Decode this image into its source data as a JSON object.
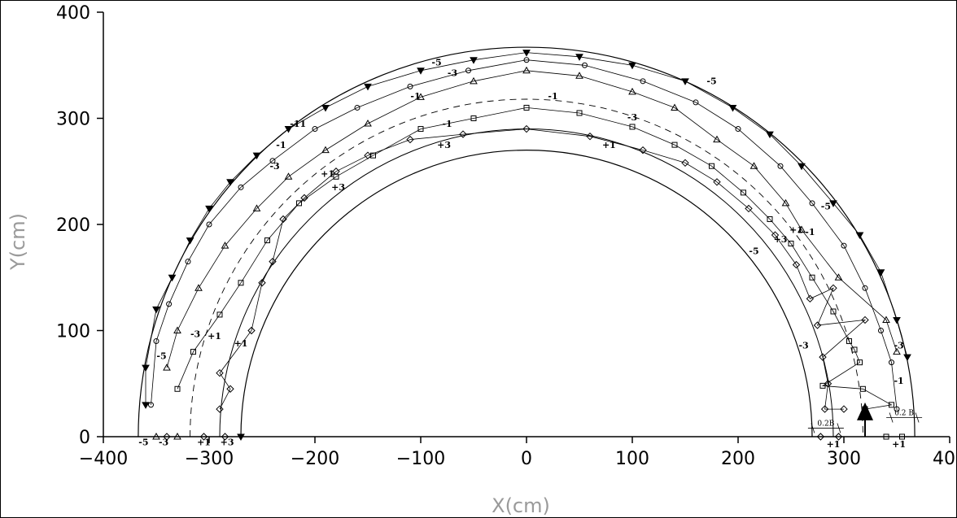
{
  "chart_data": {
    "type": "scatter",
    "title": "",
    "xlabel": "X(cm)",
    "ylabel": "Y(cm)",
    "xlim": [
      -400,
      400
    ],
    "ylim": [
      0,
      400
    ],
    "xticks": [
      -400,
      -300,
      -200,
      -100,
      0,
      100,
      200,
      300,
      400
    ],
    "yticks": [
      0,
      100,
      200,
      300,
      400
    ],
    "xtick_labels": [
      "−400",
      "−300",
      "−200",
      "−100",
      "0",
      "100",
      "200",
      "300",
      "400"
    ],
    "ytick_labels": [
      "0",
      "100",
      "200",
      "300",
      "400"
    ],
    "grid": false,
    "channel": {
      "inner_radius": 270,
      "outer_radius": 367,
      "inner_offset_radius": 290,
      "dashed_centerline_radius": 318
    },
    "arrow": {
      "x": 320,
      "y_from": 0,
      "y_to": 20
    },
    "scale_marks": [
      {
        "label": "0.2B",
        "x": 283,
        "y": 8
      },
      {
        "label": "0.2 B",
        "x": 357,
        "y": 18
      }
    ],
    "contour_labels": [
      {
        "text": "-5",
        "x": -362,
        "y": -8
      },
      {
        "text": "-3",
        "x": -343,
        "y": -8
      },
      {
        "text": "+1",
        "x": -305,
        "y": -8
      },
      {
        "text": "+3",
        "x": -283,
        "y": -8
      },
      {
        "text": "+1",
        "x": 290,
        "y": -10
      },
      {
        "text": "+1",
        "x": 352,
        "y": -10
      },
      {
        "text": "-5",
        "x": -345,
        "y": 73
      },
      {
        "text": "-3",
        "x": -313,
        "y": 94
      },
      {
        "text": "+1",
        "x": -295,
        "y": 92
      },
      {
        "text": "+1",
        "x": -270,
        "y": 85
      },
      {
        "text": "-3",
        "x": 262,
        "y": 83
      },
      {
        "text": "-3",
        "x": 352,
        "y": 83
      },
      {
        "text": "-1",
        "x": 352,
        "y": 50
      },
      {
        "text": "-5",
        "x": 215,
        "y": 172
      },
      {
        "text": "+3",
        "x": 240,
        "y": 183
      },
      {
        "text": "+1",
        "x": 255,
        "y": 192
      },
      {
        "text": "-1",
        "x": 268,
        "y": 190
      },
      {
        "text": "-5",
        "x": 283,
        "y": 214
      },
      {
        "text": "-1",
        "x": -232,
        "y": 272
      },
      {
        "text": "+1",
        "x": -188,
        "y": 245
      },
      {
        "text": "+3",
        "x": -178,
        "y": 232
      },
      {
        "text": "-11",
        "x": -216,
        "y": 292
      },
      {
        "text": "-3",
        "x": -238,
        "y": 252
      },
      {
        "text": "-1",
        "x": -105,
        "y": 318
      },
      {
        "text": "-1",
        "x": -75,
        "y": 292
      },
      {
        "text": "+3",
        "x": -78,
        "y": 272
      },
      {
        "text": "-1",
        "x": 25,
        "y": 318
      },
      {
        "text": "+1",
        "x": 78,
        "y": 272
      },
      {
        "text": "-3",
        "x": 100,
        "y": 298
      },
      {
        "text": "-5",
        "x": -85,
        "y": 350
      },
      {
        "text": "-3",
        "x": -70,
        "y": 340
      },
      {
        "text": "-5",
        "x": 175,
        "y": 332
      }
    ],
    "series": [
      {
        "marker": "diamond",
        "points": [
          [
            -340,
            0
          ],
          [
            -305,
            0
          ],
          [
            -285,
            0
          ],
          [
            -290,
            26
          ],
          [
            -280,
            45
          ],
          [
            -290,
            60
          ],
          [
            -260,
            100
          ],
          [
            -250,
            145
          ],
          [
            -240,
            165
          ],
          [
            -230,
            205
          ],
          [
            -210,
            225
          ],
          [
            -180,
            250
          ],
          [
            -150,
            265
          ],
          [
            -110,
            280
          ],
          [
            -60,
            285
          ],
          [
            0,
            290
          ],
          [
            60,
            283
          ],
          [
            110,
            270
          ],
          [
            150,
            258
          ],
          [
            180,
            240
          ],
          [
            210,
            215
          ],
          [
            235,
            190
          ],
          [
            255,
            162
          ],
          [
            268,
            130
          ],
          [
            275,
            105
          ],
          [
            280,
            75
          ],
          [
            285,
            50
          ],
          [
            282,
            26
          ],
          [
            278,
            0
          ],
          [
            295,
            0
          ],
          [
            300,
            26
          ],
          [
            320,
            110
          ],
          [
            290,
            140
          ]
        ]
      },
      {
        "marker": "square",
        "points": [
          [
            -330,
            45
          ],
          [
            -315,
            80
          ],
          [
            -290,
            115
          ],
          [
            -270,
            145
          ],
          [
            -245,
            185
          ],
          [
            -215,
            220
          ],
          [
            -180,
            245
          ],
          [
            -145,
            265
          ],
          [
            -100,
            290
          ],
          [
            -50,
            300
          ],
          [
            0,
            310
          ],
          [
            50,
            305
          ],
          [
            100,
            292
          ],
          [
            140,
            275
          ],
          [
            175,
            255
          ],
          [
            205,
            230
          ],
          [
            230,
            205
          ],
          [
            250,
            182
          ],
          [
            270,
            150
          ],
          [
            290,
            118
          ],
          [
            305,
            90
          ],
          [
            315,
            70
          ],
          [
            318,
            45
          ],
          [
            320,
            26
          ],
          [
            340,
            0
          ],
          [
            355,
            0
          ],
          [
            345,
            30
          ],
          [
            310,
            82
          ],
          [
            280,
            48
          ]
        ]
      },
      {
        "marker": "triangle",
        "points": [
          [
            -350,
            0
          ],
          [
            -330,
            0
          ],
          [
            -340,
            65
          ],
          [
            -330,
            100
          ],
          [
            -310,
            140
          ],
          [
            -285,
            180
          ],
          [
            -255,
            215
          ],
          [
            -225,
            245
          ],
          [
            -190,
            270
          ],
          [
            -150,
            295
          ],
          [
            -100,
            320
          ],
          [
            -50,
            335
          ],
          [
            0,
            345
          ],
          [
            50,
            340
          ],
          [
            100,
            325
          ],
          [
            140,
            310
          ],
          [
            180,
            280
          ],
          [
            215,
            255
          ],
          [
            245,
            220
          ],
          [
            260,
            195
          ],
          [
            295,
            150
          ],
          [
            340,
            110
          ],
          [
            350,
            80
          ]
        ]
      },
      {
        "marker": "circle",
        "points": [
          [
            -355,
            30
          ],
          [
            -350,
            90
          ],
          [
            -338,
            125
          ],
          [
            -320,
            165
          ],
          [
            -300,
            200
          ],
          [
            -270,
            235
          ],
          [
            -240,
            260
          ],
          [
            -200,
            290
          ],
          [
            -160,
            310
          ],
          [
            -110,
            330
          ],
          [
            -55,
            345
          ],
          [
            0,
            355
          ],
          [
            55,
            350
          ],
          [
            110,
            335
          ],
          [
            160,
            315
          ],
          [
            200,
            290
          ],
          [
            240,
            255
          ],
          [
            270,
            220
          ],
          [
            300,
            180
          ],
          [
            320,
            140
          ],
          [
            335,
            100
          ],
          [
            345,
            70
          ],
          [
            350,
            26
          ]
        ]
      },
      {
        "marker": "inverted-triangle",
        "points": [
          [
            -360,
            30
          ],
          [
            -360,
            65
          ],
          [
            -350,
            120
          ],
          [
            -335,
            150
          ],
          [
            -318,
            185
          ],
          [
            -300,
            215
          ],
          [
            -280,
            240
          ],
          [
            -255,
            265
          ],
          [
            -225,
            290
          ],
          [
            -190,
            310
          ],
          [
            -150,
            330
          ],
          [
            -100,
            345
          ],
          [
            -50,
            355
          ],
          [
            0,
            362
          ],
          [
            50,
            358
          ],
          [
            100,
            350
          ],
          [
            150,
            335
          ],
          [
            195,
            310
          ],
          [
            230,
            285
          ],
          [
            260,
            255
          ],
          [
            290,
            220
          ],
          [
            315,
            190
          ],
          [
            335,
            155
          ],
          [
            350,
            110
          ],
          [
            360,
            75
          ],
          [
            -270,
            0
          ]
        ]
      }
    ]
  }
}
